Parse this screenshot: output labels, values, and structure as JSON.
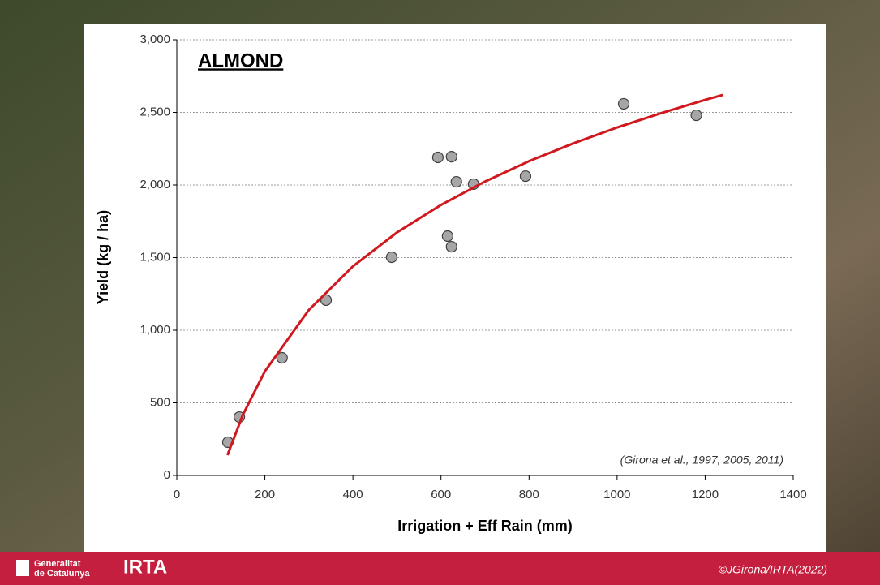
{
  "chart_data": {
    "type": "scatter",
    "title": "ALMOND",
    "annotation": "(Girona et al., 1997, 2005, 2011)",
    "xlabel": "Irrigation + Eff Rain (mm)",
    "ylabel": "Yield (kg / ha)",
    "xlim": [
      0,
      1400
    ],
    "xticks": [
      0,
      200,
      400,
      600,
      800,
      1000,
      1200,
      1400
    ],
    "ylim": [
      0,
      3000
    ],
    "yticks": [
      0,
      500,
      {
        "value": 1000,
        "label": "1,000"
      },
      {
        "value": 1500,
        "label": "1,500"
      },
      {
        "value": 2000,
        "label": "2,000"
      },
      {
        "value": 2500,
        "label": "2,500"
      },
      {
        "value": 3000,
        "label": "3,000"
      }
    ],
    "grid": true,
    "series": [
      {
        "type": "scatter",
        "color": "#a6a6a6",
        "x": [
          116,
          142,
          239,
          339,
          488,
          615,
          624,
          593,
          624,
          635,
          674,
          792,
          1015,
          1180
        ],
        "values": [
          229,
          402,
          810,
          1207,
          1503,
          1648,
          1575,
          2190,
          2195,
          2022,
          2006,
          2061,
          2559,
          2480
        ]
      },
      {
        "type": "line",
        "color": "#d0191e",
        "x": [
          115,
          150,
          200,
          300,
          400,
          500,
          600,
          700,
          800,
          900,
          1000,
          1100,
          1200,
          1240
        ],
        "values": [
          140,
          417,
          717,
          1140,
          1440,
          1673,
          1863,
          2024,
          2164,
          2286,
          2396,
          2495,
          2586,
          2620
        ]
      }
    ]
  },
  "footer": {
    "org_line1": "Generalitat",
    "org_line2": "de Catalunya",
    "logo": "IRTA",
    "credit": "©JGirona/IRTA(2022)"
  }
}
